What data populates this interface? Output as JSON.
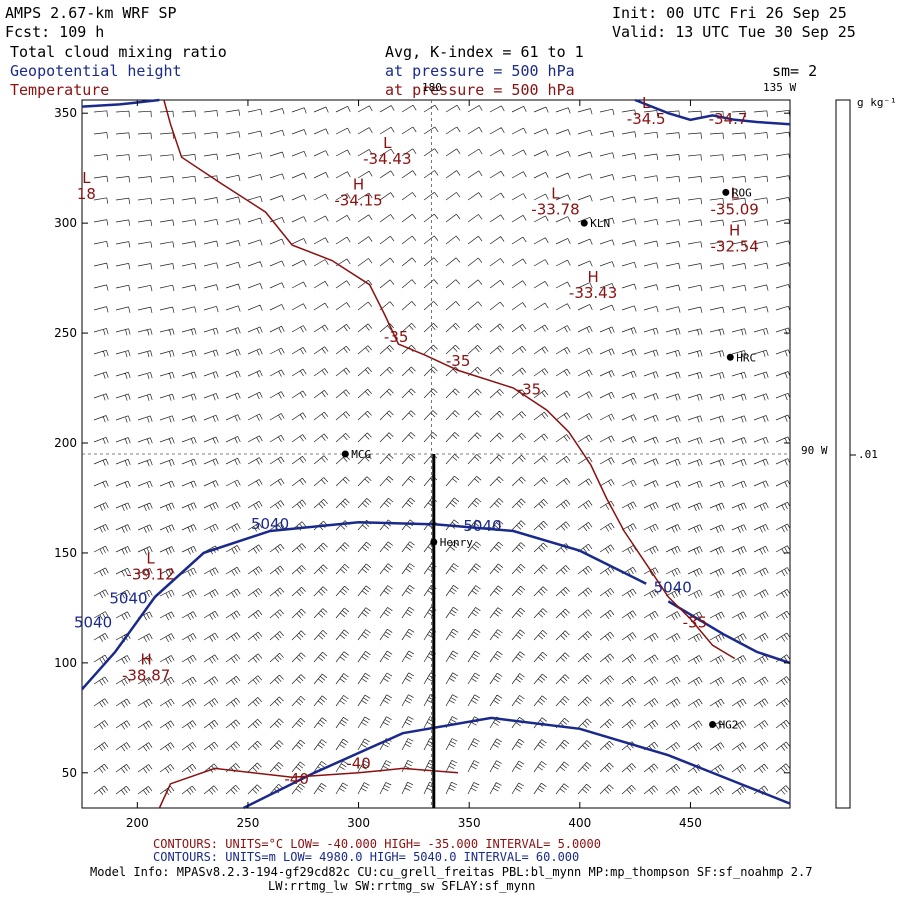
{
  "header": {
    "model": "AMPS 2.67-km WRF SP",
    "forecast": "Fcst: 109 h",
    "init": "Init: 00 UTC Fri 26 Sep 25",
    "valid": "Valid: 13 UTC Tue 30 Sep 25",
    "field1": "Total cloud mixing ratio",
    "field2": "Geopotential height",
    "field3": "Temperature",
    "avg": "Avg, K-index = 61 to 1",
    "pressure1": "at pressure = 500 hPa",
    "pressure2": "at pressure = 500 hPa",
    "smoothing": "sm= 2"
  },
  "colorbar": {
    "units": "g kg⁻¹",
    "value_label": ".01"
  },
  "map_labels": {
    "lon_180": "180",
    "lon_135": "135 W",
    "lon_90": "90 W"
  },
  "stations": [
    {
      "name": "KLN",
      "x": 402,
      "y": 300
    },
    {
      "name": "ROG",
      "x": 466,
      "y": 314
    },
    {
      "name": "HRC",
      "x": 468,
      "y": 239
    },
    {
      "name": "MCG",
      "x": 294,
      "y": 195
    },
    {
      "name": "Henry",
      "x": 334,
      "y": 155
    },
    {
      "name": "HG2",
      "x": 460,
      "y": 72
    }
  ],
  "chart_data": {
    "type": "contour",
    "xlim": [
      175,
      495
    ],
    "ylim": [
      34,
      356
    ],
    "x_ticks": [
      200,
      250,
      300,
      350,
      400,
      450
    ],
    "y_ticks": [
      50,
      100,
      150,
      200,
      250,
      300,
      350
    ],
    "cross_section": {
      "x": 334,
      "y0": 34,
      "y1": 195
    },
    "crosshair": {
      "x": 333,
      "y": 195
    },
    "height_contour_labels": [
      {
        "text": "5040",
        "x": 260,
        "y": 161
      },
      {
        "text": "5040",
        "x": 356,
        "y": 160
      },
      {
        "text": "5040",
        "x": 442,
        "y": 132
      },
      {
        "text": "5040",
        "x": 196,
        "y": 127
      },
      {
        "text": "5040",
        "x": 180,
        "y": 116
      }
    ],
    "temperature_contour_labels": [
      {
        "text": "-35",
        "x": 317,
        "y": 246
      },
      {
        "text": "-35",
        "x": 345,
        "y": 235
      },
      {
        "text": "-35",
        "x": 377,
        "y": 222
      },
      {
        "text": "-35",
        "x": 452,
        "y": 116
      },
      {
        "text": "-40",
        "x": 300,
        "y": 52
      },
      {
        "text": "-40",
        "x": 272,
        "y": 45
      }
    ],
    "highs_lows": [
      {
        "symbol": "L",
        "value": "-34.43",
        "x": 313,
        "y": 327
      },
      {
        "symbol": "H",
        "value": "-34.15",
        "x": 300,
        "y": 308
      },
      {
        "symbol": "L",
        "value": "-33.78",
        "x": 389,
        "y": 304
      },
      {
        "symbol": "H",
        "value": "-33.43",
        "x": 406,
        "y": 266
      },
      {
        "symbol": "L",
        "value": "-35.09",
        "x": 470,
        "y": 304
      },
      {
        "symbol": "H",
        "value": "-32.54",
        "x": 470,
        "y": 287
      },
      {
        "symbol": "L",
        "value": "-39.12",
        "x": 206,
        "y": 138
      },
      {
        "symbol": "H",
        "value": "-38.87",
        "x": 204,
        "y": 92
      },
      {
        "symbol": "L",
        "value": "-34.5",
        "x": 430,
        "y": 345
      },
      {
        "symbol": "",
        "value": "-34.7",
        "x": 467,
        "y": 345
      },
      {
        "symbol": "L",
        "value": "18",
        "x": 177,
        "y": 311
      }
    ]
  },
  "footer": {
    "temp_contours": "CONTOURS: UNITS=°C LOW= -40.000 HIGH= -35.000 INTERVAL= 5.0000",
    "height_contours": "CONTOURS: UNITS=m LOW= 4980.0 HIGH= 5040.0 INTERVAL= 60.000",
    "model_info": "Model Info: MPASv8.2.3-194-gf29cd82c CU:cu_grell_freitas PBL:bl_mynn MP:mp_thompson SF:sf_noahmp 2.7",
    "model_info2": "LW:rrtmg_lw SW:rrtmg_sw SFLAY:sf_mynn"
  }
}
